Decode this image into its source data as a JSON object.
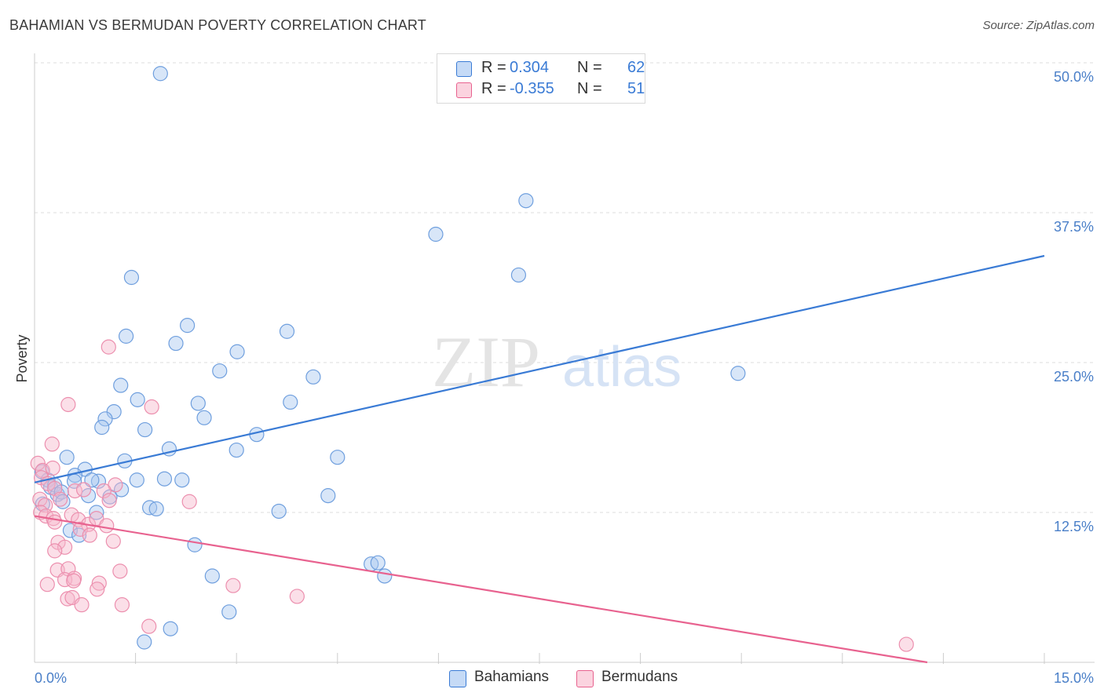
{
  "title": "BAHAMIAN VS BERMUDAN POVERTY CORRELATION CHART",
  "source": "Source: ZipAtlas.com",
  "watermark": {
    "zip": "ZIP",
    "atlas": "atlas"
  },
  "colors": {
    "blue": "#3a7bd5",
    "blue_fill": "#a9c8f0",
    "pink": "#e8628f",
    "pink_fill": "#f6b9cc",
    "axis_label_blue": "#4a7fc8",
    "grid": "#dcdcdc"
  },
  "legend": {
    "rows": [
      {
        "r_label": "R =",
        "r_value": "0.304",
        "n_label": "N =",
        "n_value": "62",
        "color": "#a9c8f0"
      },
      {
        "r_label": "R =",
        "r_value": "-0.355",
        "n_label": "N =",
        "n_value": "51",
        "color": "#f6b9cc"
      }
    ]
  },
  "bottom_legend": [
    {
      "label": "Bahamians",
      "color": "#a9c8f0"
    },
    {
      "label": "Bermudans",
      "color": "#f6b9cc"
    }
  ],
  "chart_data": {
    "type": "scatter",
    "title": "BAHAMIAN VS BERMUDAN POVERTY CORRELATION CHART",
    "xlabel": "",
    "ylabel": "Poverty",
    "xlim": [
      0,
      15
    ],
    "ylim": [
      0,
      50
    ],
    "x_tick_labels": [
      "0.0%",
      "15.0%"
    ],
    "y_ticks": [
      12.5,
      25.0,
      37.5,
      50.0
    ],
    "y_tick_labels": [
      "12.5%",
      "25.0%",
      "37.5%",
      "50.0%"
    ],
    "grid": true,
    "legend_placement": "top-center",
    "series": [
      {
        "name": "Bahamians",
        "color": "#3a7bd5",
        "trend": {
          "x": [
            0.0,
            15.0
          ],
          "y": [
            15.0,
            33.9
          ]
        },
        "points": [
          [
            1.87,
            49.1
          ],
          [
            7.3,
            38.5
          ],
          [
            5.96,
            35.7
          ],
          [
            1.44,
            32.1
          ],
          [
            7.19,
            32.3
          ],
          [
            2.27,
            28.1
          ],
          [
            3.75,
            27.6
          ],
          [
            1.36,
            27.2
          ],
          [
            2.1,
            26.6
          ],
          [
            3.01,
            25.9
          ],
          [
            2.75,
            24.3
          ],
          [
            4.14,
            23.8
          ],
          [
            10.45,
            24.1
          ],
          [
            1.28,
            23.1
          ],
          [
            1.53,
            21.9
          ],
          [
            2.43,
            21.6
          ],
          [
            3.8,
            21.7
          ],
          [
            1.18,
            20.9
          ],
          [
            1.05,
            20.3
          ],
          [
            2.52,
            20.4
          ],
          [
            1.0,
            19.6
          ],
          [
            1.64,
            19.4
          ],
          [
            3.3,
            19.0
          ],
          [
            2.0,
            17.8
          ],
          [
            3.0,
            17.7
          ],
          [
            0.48,
            17.1
          ],
          [
            1.34,
            16.8
          ],
          [
            4.5,
            17.1
          ],
          [
            0.75,
            16.1
          ],
          [
            0.6,
            15.6
          ],
          [
            0.11,
            15.9
          ],
          [
            0.2,
            15.2
          ],
          [
            0.24,
            14.6
          ],
          [
            0.3,
            14.8
          ],
          [
            0.59,
            15.1
          ],
          [
            0.95,
            15.1
          ],
          [
            0.85,
            15.2
          ],
          [
            1.52,
            15.2
          ],
          [
            1.93,
            15.3
          ],
          [
            2.19,
            15.2
          ],
          [
            0.34,
            14.0
          ],
          [
            1.29,
            14.4
          ],
          [
            0.4,
            14.2
          ],
          [
            0.8,
            13.9
          ],
          [
            1.12,
            13.8
          ],
          [
            0.42,
            13.4
          ],
          [
            1.71,
            12.9
          ],
          [
            1.81,
            12.8
          ],
          [
            3.63,
            12.6
          ],
          [
            4.36,
            13.9
          ],
          [
            0.92,
            12.5
          ],
          [
            0.53,
            11.0
          ],
          [
            0.66,
            10.6
          ],
          [
            2.38,
            9.8
          ],
          [
            5.0,
            8.2
          ],
          [
            5.1,
            8.3
          ],
          [
            5.2,
            7.2
          ],
          [
            2.64,
            7.2
          ],
          [
            2.89,
            4.2
          ],
          [
            2.02,
            2.8
          ],
          [
            1.63,
            1.7
          ],
          [
            0.12,
            13.2
          ]
        ]
      },
      {
        "name": "Bermudans",
        "color": "#e8628f",
        "trend": {
          "x": [
            0.0,
            15.0
          ],
          "y": [
            12.2,
            -1.6
          ]
        },
        "points": [
          [
            0.05,
            16.6
          ],
          [
            0.12,
            16.0
          ],
          [
            0.27,
            16.2
          ],
          [
            0.5,
            21.5
          ],
          [
            1.1,
            26.3
          ],
          [
            1.74,
            21.3
          ],
          [
            0.26,
            18.2
          ],
          [
            0.1,
            15.4
          ],
          [
            0.2,
            14.9
          ],
          [
            0.3,
            14.5
          ],
          [
            0.6,
            14.3
          ],
          [
            1.2,
            14.8
          ],
          [
            0.08,
            13.6
          ],
          [
            0.16,
            13.1
          ],
          [
            0.38,
            13.6
          ],
          [
            0.73,
            14.4
          ],
          [
            1.03,
            14.3
          ],
          [
            1.11,
            13.5
          ],
          [
            2.3,
            13.4
          ],
          [
            0.09,
            12.5
          ],
          [
            0.17,
            12.2
          ],
          [
            0.28,
            12.0
          ],
          [
            0.55,
            12.3
          ],
          [
            0.65,
            11.9
          ],
          [
            0.8,
            11.5
          ],
          [
            0.92,
            12.0
          ],
          [
            1.07,
            11.4
          ],
          [
            0.3,
            11.7
          ],
          [
            0.68,
            11.1
          ],
          [
            0.82,
            10.6
          ],
          [
            0.35,
            10.0
          ],
          [
            0.45,
            9.6
          ],
          [
            0.3,
            9.3
          ],
          [
            1.17,
            10.1
          ],
          [
            0.34,
            7.7
          ],
          [
            0.5,
            7.8
          ],
          [
            1.27,
            7.6
          ],
          [
            0.45,
            6.9
          ],
          [
            0.59,
            7.0
          ],
          [
            0.19,
            6.5
          ],
          [
            0.96,
            6.6
          ],
          [
            0.93,
            6.1
          ],
          [
            0.49,
            5.3
          ],
          [
            0.56,
            5.4
          ],
          [
            0.7,
            4.8
          ],
          [
            1.3,
            4.8
          ],
          [
            2.95,
            6.4
          ],
          [
            3.9,
            5.5
          ],
          [
            1.7,
            3.0
          ],
          [
            12.95,
            1.5
          ],
          [
            0.58,
            6.8
          ]
        ]
      }
    ]
  }
}
